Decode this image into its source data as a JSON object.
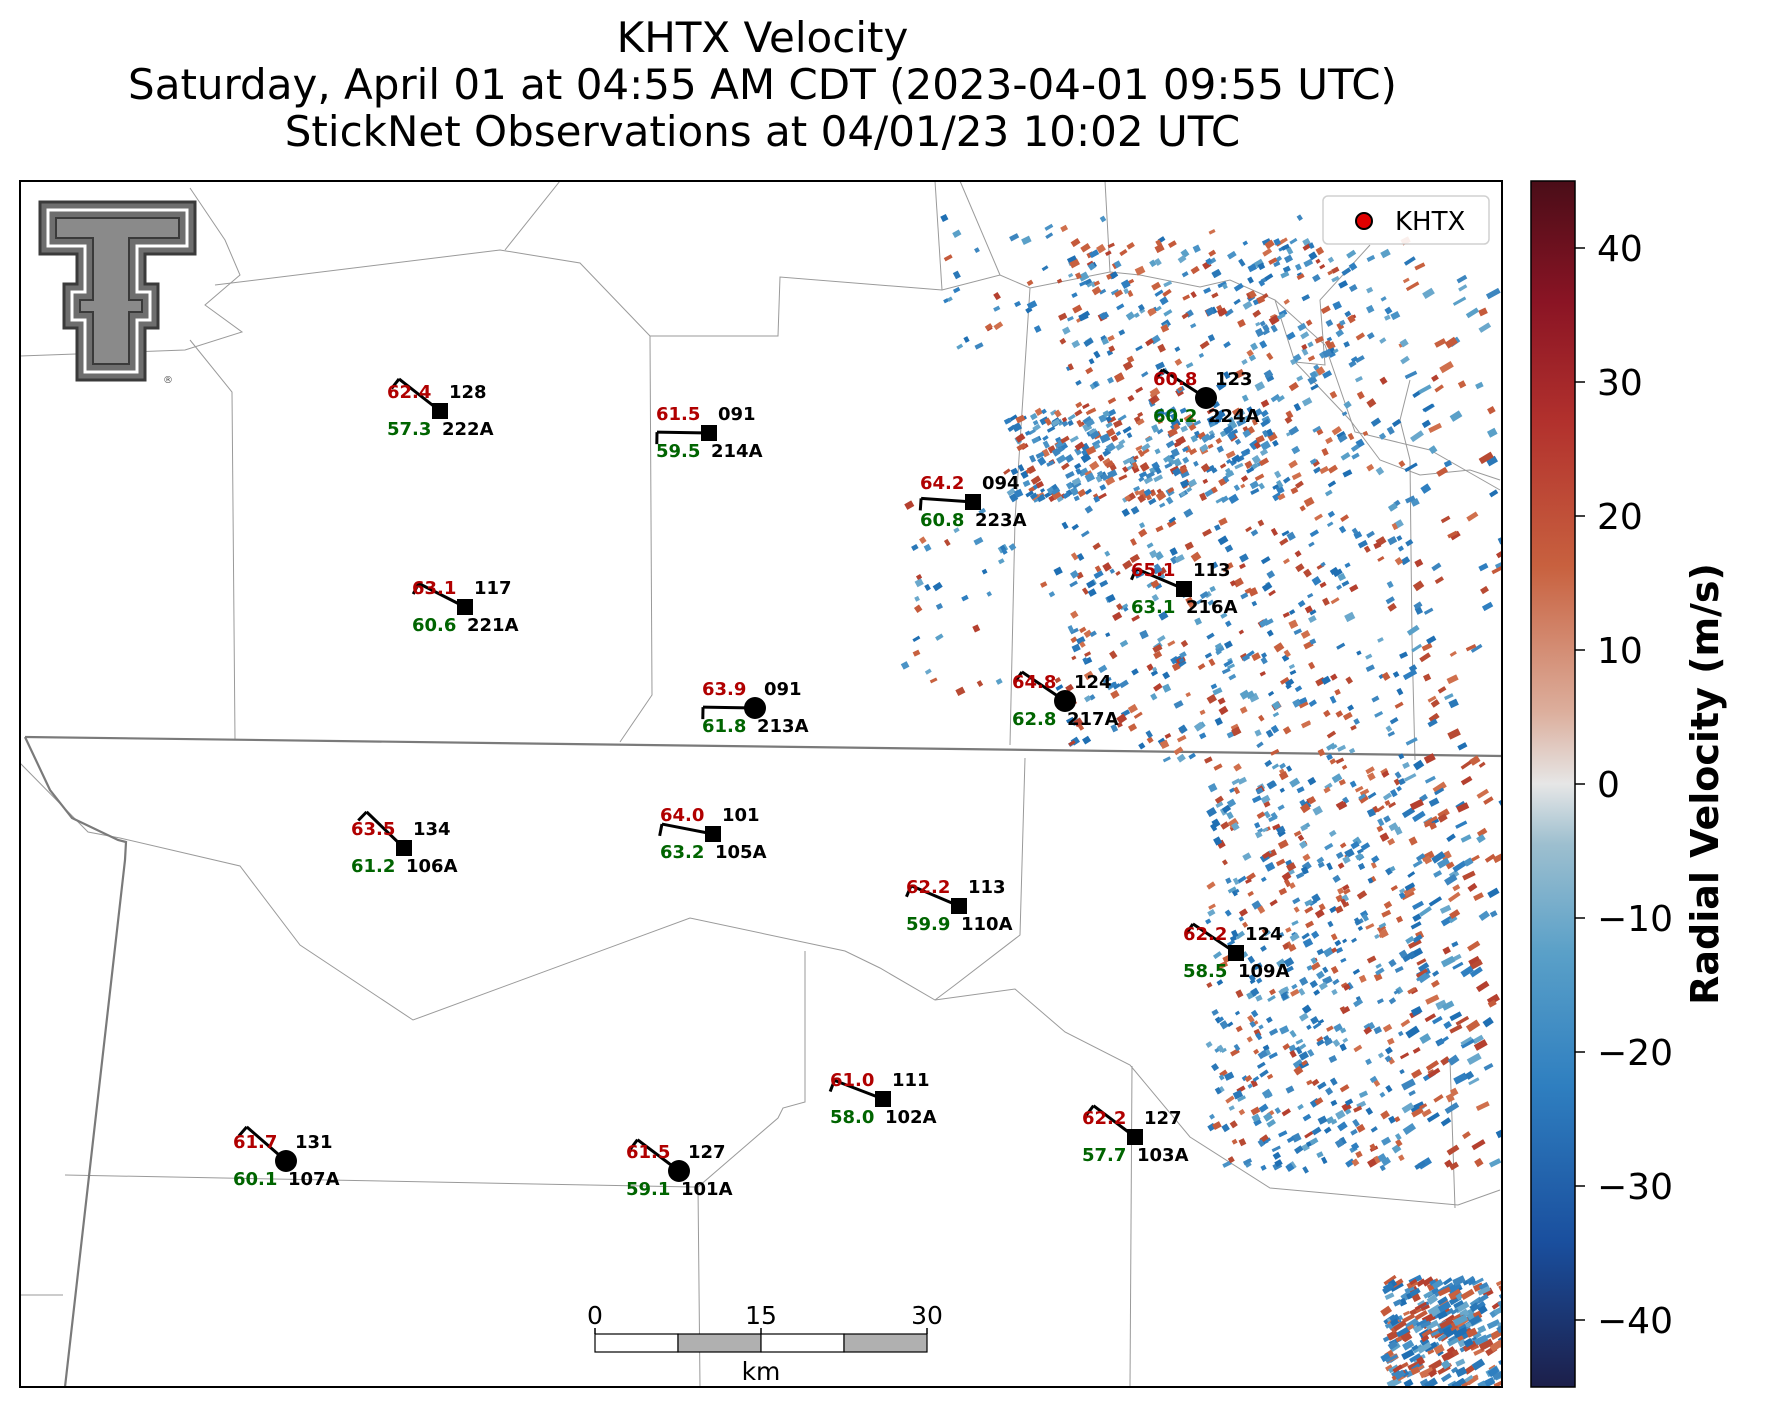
{
  "title": {
    "line1": "KHTX Velocity",
    "line2": "Saturday, April 01 at 04:55 AM CDT (2023-04-01 09:55 UTC)",
    "line3": "StickNet Observations at 04/01/23 10:02 UTC"
  },
  "legend": {
    "label": "KHTX",
    "marker_color": "#e00000"
  },
  "colorbar": {
    "label": "Radial Velocity (m/s)",
    "range": [
      -45,
      45
    ],
    "ticks": [
      "40",
      "30",
      "20",
      "10",
      "0",
      "−10",
      "−20",
      "−30",
      "−40"
    ],
    "tick_values": [
      40,
      30,
      20,
      10,
      0,
      -10,
      -20,
      -30,
      -40
    ],
    "colors": [
      "#1c1f4a",
      "#1a4f9e",
      "#2f7fc0",
      "#5aa0c8",
      "#9dbfcf",
      "#e6e6e6",
      "#dcae9c",
      "#c8613f",
      "#b2312d",
      "#8a1424",
      "#4a0d18"
    ]
  },
  "scalebar": {
    "ticks": [
      "0",
      "15",
      "30"
    ],
    "unit": "km"
  },
  "logo": {
    "name": "Texas Tech Double T",
    "mark": "®"
  },
  "colors": {
    "temperature": "#b00000",
    "dewpoint": "#006400",
    "id": "#000000"
  },
  "stations": [
    {
      "id": "222A",
      "temp": "62.4",
      "dew": "57.3",
      "dir": "128",
      "marker": "square"
    },
    {
      "id": "214A",
      "temp": "61.5",
      "dew": "59.5",
      "dir": "091",
      "marker": "square"
    },
    {
      "id": "223A",
      "temp": "64.2",
      "dew": "60.8",
      "dir": "094",
      "marker": "square"
    },
    {
      "id": "224A",
      "temp": "60.8",
      "dew": "60.2",
      "dir": "123",
      "marker": "circle"
    },
    {
      "id": "221A",
      "temp": "63.1",
      "dew": "60.6",
      "dir": "117",
      "marker": "square"
    },
    {
      "id": "216A",
      "temp": "65.1",
      "dew": "63.1",
      "dir": "113",
      "marker": "square"
    },
    {
      "id": "213A",
      "temp": "63.9",
      "dew": "61.8",
      "dir": "091",
      "marker": "circle"
    },
    {
      "id": "217A",
      "temp": "64.8",
      "dew": "62.8",
      "dir": "124",
      "marker": "circle"
    },
    {
      "id": "106A",
      "temp": "63.5",
      "dew": "61.2",
      "dir": "134",
      "marker": "square"
    },
    {
      "id": "105A",
      "temp": "64.0",
      "dew": "63.2",
      "dir": "101",
      "marker": "square"
    },
    {
      "id": "110A",
      "temp": "62.2",
      "dew": "59.9",
      "dir": "113",
      "marker": "square"
    },
    {
      "id": "109A",
      "temp": "62.2",
      "dew": "58.5",
      "dir": "124",
      "marker": "square"
    },
    {
      "id": "102A",
      "temp": "61.0",
      "dew": "58.0",
      "dir": "111",
      "marker": "square"
    },
    {
      "id": "107A",
      "temp": "61.7",
      "dew": "60.1",
      "dir": "131",
      "marker": "circle"
    },
    {
      "id": "101A",
      "temp": "61.5",
      "dew": "59.1",
      "dir": "127",
      "marker": "circle"
    },
    {
      "id": "103A",
      "temp": "62.2",
      "dew": "57.7",
      "dir": "127",
      "marker": "square"
    }
  ]
}
